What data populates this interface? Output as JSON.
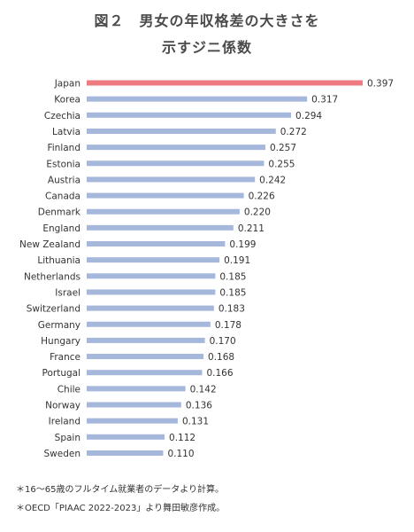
{
  "title_line1": "図２　男女の年収格差の大きさを",
  "title_line2": "示すジニ係数",
  "chart_data": {
    "type": "bar",
    "orientation": "horizontal",
    "title": "図２　男女の年収格差の大きさを示すジニ係数",
    "categories": [
      "Japan",
      "Korea",
      "Czechia",
      "Latvia",
      "Finland",
      "Estonia",
      "Austria",
      "Canada",
      "Denmark",
      "England",
      "New Zealand",
      "Lithuania",
      "Netherlands",
      "Israel",
      "Switzerland",
      "Germany",
      "Hungary",
      "France",
      "Portugal",
      "Chile",
      "Norway",
      "Ireland",
      "Spain",
      "Sweden"
    ],
    "values": [
      0.397,
      0.317,
      0.294,
      0.272,
      0.257,
      0.255,
      0.242,
      0.226,
      0.22,
      0.211,
      0.199,
      0.191,
      0.185,
      0.185,
      0.183,
      0.178,
      0.17,
      0.168,
      0.166,
      0.142,
      0.136,
      0.131,
      0.112,
      0.11
    ],
    "value_labels": [
      "0.397",
      "0.317",
      "0.294",
      "0.272",
      "0.257",
      "0.255",
      "0.242",
      "0.226",
      "0.220",
      "0.211",
      "0.199",
      "0.191",
      "0.185",
      "0.185",
      "0.183",
      "0.178",
      "0.170",
      "0.168",
      "0.166",
      "0.142",
      "0.136",
      "0.131",
      "0.112",
      "0.110"
    ],
    "highlight_category": "Japan",
    "colors": {
      "bar": "#a6b7dc",
      "highlight": "#ee7b82"
    },
    "xlim": [
      0,
      0.397
    ],
    "grid": false,
    "legend": "none"
  },
  "footnotes": [
    "＊16～65歳のフルタイム就業者のデータより計算。",
    "＊OECD「PIAAC 2022-2023」より舞田敏彦作成。"
  ]
}
